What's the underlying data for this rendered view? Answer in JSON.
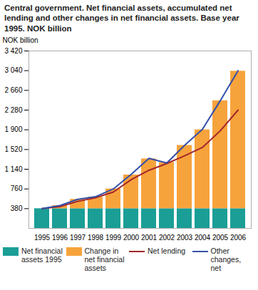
{
  "chart_data": {
    "type": "bar",
    "title": "Central government. Net financial assets, accumulated net lending and other changes in net financial assets. Base year 1995. NOK billion",
    "y_label": "NOK billion",
    "categories": [
      "1995",
      "1996",
      "1997",
      "1998",
      "1999",
      "2000",
      "2001",
      "2002",
      "2003",
      "2004",
      "2005",
      "2006"
    ],
    "stacked": true,
    "grid": false,
    "legend": "bottom",
    "ylim": [
      0,
      3420
    ],
    "yticks": [
      380,
      760,
      {
        "value": 1140,
        "label": "1 140"
      },
      {
        "value": 1520,
        "label": "1 520"
      },
      {
        "value": 1900,
        "label": "1 900"
      },
      {
        "value": 2280,
        "label": "2 280"
      },
      {
        "value": 2660,
        "label": "2 660"
      },
      {
        "value": 3040,
        "label": "3 040"
      },
      {
        "value": 3420,
        "label": "3 420"
      }
    ],
    "series": [
      {
        "name": "Net financial assets 1995",
        "type": "bar",
        "color": "#1a9e96",
        "values": [
          380,
          380,
          380,
          380,
          380,
          380,
          380,
          380,
          380,
          380,
          380,
          380
        ]
      },
      {
        "name": "Change in net financial assets",
        "type": "bar",
        "color": "#f7a33c",
        "values": [
          0,
          60,
          180,
          220,
          380,
          650,
          960,
          890,
          1220,
          1520,
          2080,
          2650
        ]
      },
      {
        "name": "Net lending",
        "type": "line",
        "color": "#a3262a",
        "values": [
          380,
          420,
          520,
          590,
          700,
          940,
          1120,
          1250,
          1400,
          1560,
          1880,
          2280
        ]
      },
      {
        "name": "Other changes, net",
        "type": "line",
        "color": "#3450a8",
        "values": [
          380,
          440,
          560,
          610,
          760,
          1040,
          1350,
          1260,
          1600,
          1910,
          2460,
          3040
        ]
      }
    ]
  }
}
